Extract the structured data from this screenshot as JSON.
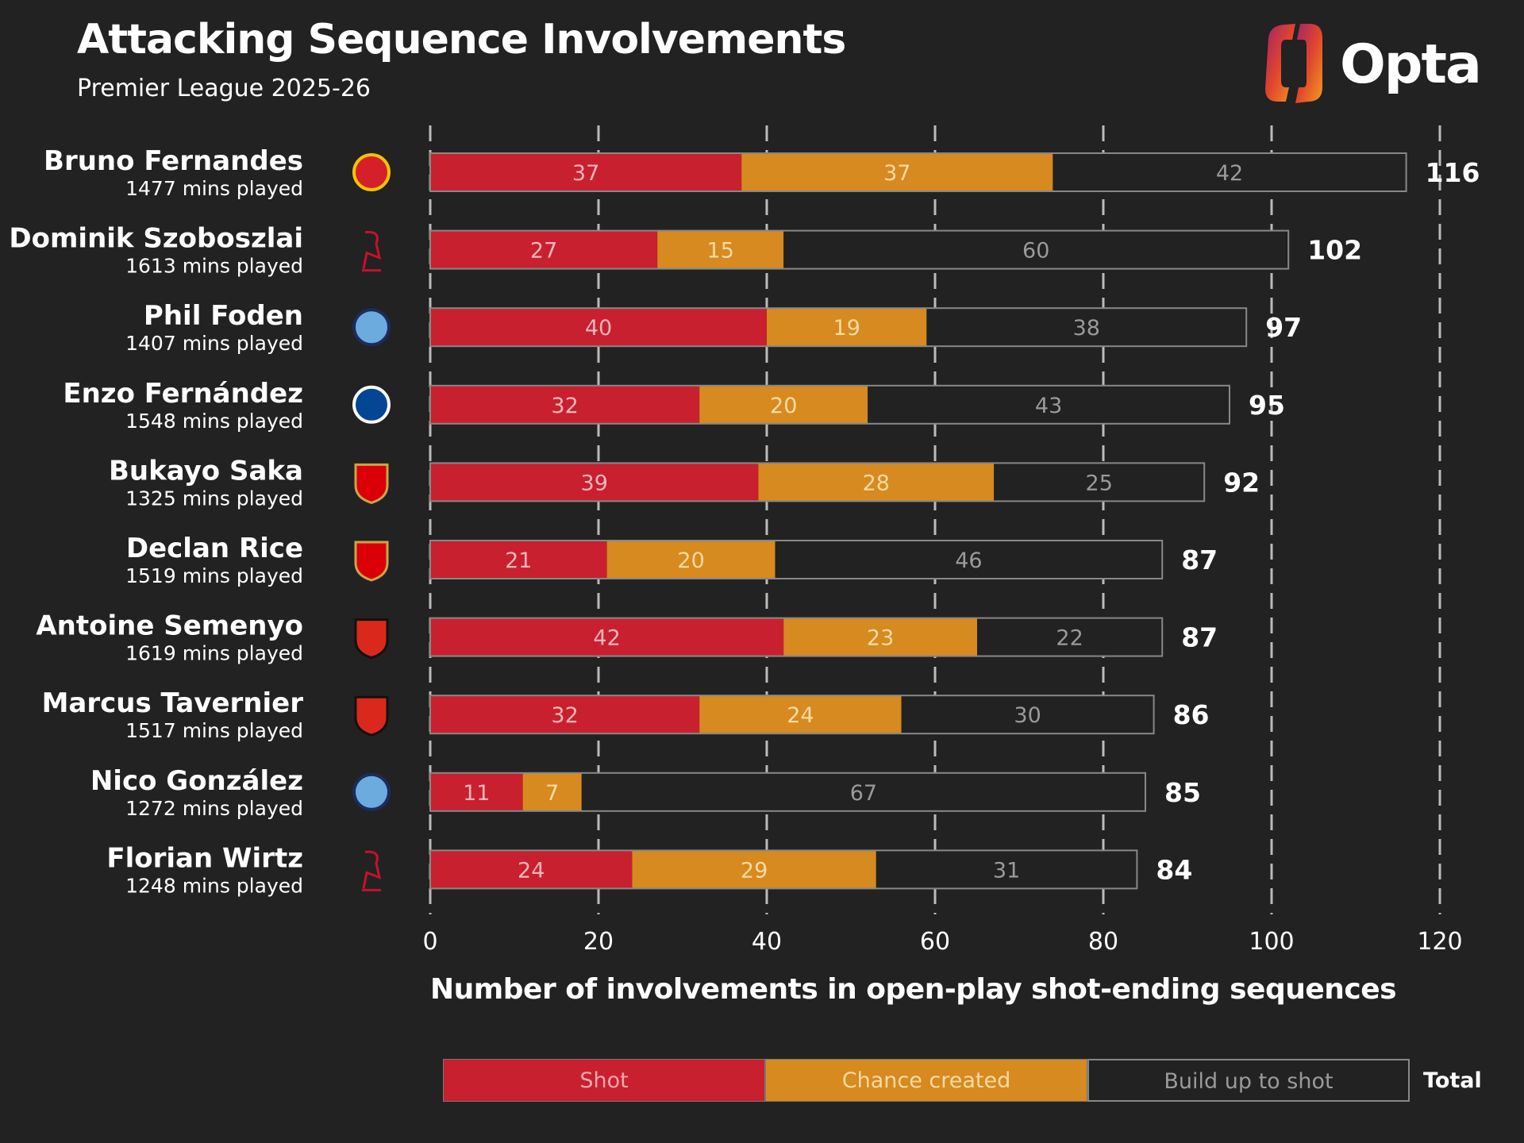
{
  "header": {
    "title": "Attacking Sequence Involvements",
    "subtitle": "Premier League 2025-26"
  },
  "brand": {
    "name": "Opta",
    "icon": "opta-logo-icon"
  },
  "colors": {
    "background": "#222222",
    "shot": "#c8202f",
    "chance": "#d78a1f",
    "build": "#222222",
    "grid": "#bbbbbb"
  },
  "legend": {
    "shot": "Shot",
    "chance": "Chance created",
    "build": "Build up to shot",
    "total": "Total"
  },
  "chart_data": {
    "type": "bar",
    "orientation": "horizontal",
    "stacked": true,
    "xlabel": "Number of involvements in open-play shot-ending sequences",
    "xlim": [
      0,
      120
    ],
    "xticks": [
      0,
      20,
      40,
      60,
      80,
      100,
      120
    ],
    "grid": "vertical dashed",
    "legend_position": "bottom",
    "categories": [
      "Bruno Fernandes",
      "Dominik Szoboszlai",
      "Phil Foden",
      "Enzo Fernández",
      "Bukayo Saka",
      "Declan Rice",
      "Antoine Semenyo",
      "Marcus Tavernier",
      "Nico González",
      "Florian Wirtz"
    ],
    "minutes": [
      "1477 mins played",
      "1613 mins played",
      "1407 mins played",
      "1548 mins played",
      "1325 mins played",
      "1519 mins played",
      "1619 mins played",
      "1517 mins played",
      "1272 mins played",
      "1248 mins played"
    ],
    "club_icons": [
      "man-utd-crest-icon",
      "liverpool-crest-icon",
      "man-city-crest-icon",
      "chelsea-crest-icon",
      "arsenal-crest-icon",
      "arsenal-crest-icon",
      "bournemouth-crest-icon",
      "bournemouth-crest-icon",
      "man-city-crest-icon",
      "liverpool-crest-icon"
    ],
    "series": [
      {
        "name": "Shot",
        "values": [
          37,
          27,
          40,
          32,
          39,
          21,
          42,
          32,
          11,
          24
        ]
      },
      {
        "name": "Chance created",
        "values": [
          37,
          15,
          19,
          20,
          28,
          20,
          23,
          24,
          7,
          29
        ]
      },
      {
        "name": "Build up to shot",
        "values": [
          42,
          60,
          38,
          43,
          25,
          46,
          22,
          30,
          67,
          31
        ]
      }
    ],
    "totals": [
      116,
      102,
      97,
      95,
      92,
      87,
      87,
      86,
      85,
      84
    ]
  }
}
